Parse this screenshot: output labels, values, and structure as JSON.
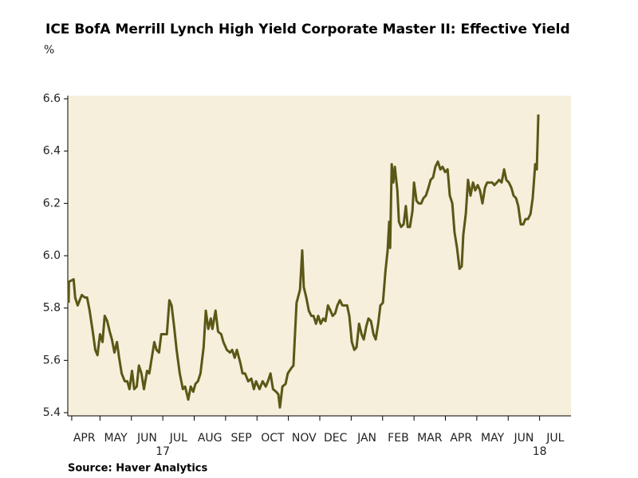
{
  "chart_data": {
    "type": "line",
    "title": "ICE BofA Merrill Lynch High Yield Corporate Master II: Effective Yield",
    "ylabel": "%",
    "source": "Source: Haver Analytics",
    "color": "#5b5716",
    "background": "#f5efdc",
    "grid": false,
    "ylim": [
      5.4,
      6.6
    ],
    "yticks": [
      5.4,
      5.6,
      5.8,
      {
        "value": 6,
        "label": "6.0"
      },
      6.2,
      6.4,
      6.6
    ],
    "xlim": [
      0,
      16
    ],
    "xticks": [
      {
        "value": 0.5,
        "label": "APR"
      },
      {
        "value": 1.5,
        "label": "MAY"
      },
      {
        "value": 2.5,
        "label": "JUN"
      },
      {
        "value": 3.5,
        "label": "JUL"
      },
      {
        "value": 4.5,
        "label": "AUG"
      },
      {
        "value": 5.5,
        "label": "SEP"
      },
      {
        "value": 6.5,
        "label": "OCT"
      },
      {
        "value": 7.5,
        "label": "NOV"
      },
      {
        "value": 8.5,
        "label": "DEC"
      },
      {
        "value": 9.5,
        "label": "JAN"
      },
      {
        "value": 10.5,
        "label": "FEB"
      },
      {
        "value": 11.5,
        "label": "MAR"
      },
      {
        "value": 12.5,
        "label": "APR"
      },
      {
        "value": 13.5,
        "label": "MAY"
      },
      {
        "value": 14.5,
        "label": "JUN"
      },
      {
        "value": 15.5,
        "label": "JUL"
      }
    ],
    "xminorticks": [
      0.1,
      1,
      2,
      3,
      4,
      5,
      6,
      7,
      8,
      9,
      10,
      11,
      12,
      13,
      14,
      15
    ],
    "year_ticks": [
      {
        "value": 3,
        "label": "17"
      },
      {
        "value": 15,
        "label": "18"
      }
    ],
    "x": [
      0,
      0.01,
      0.16,
      0.21,
      0.29,
      0.42,
      0.52,
      0.59,
      0.67,
      0.77,
      0.85,
      0.92,
      1.0,
      1.08,
      1.15,
      1.23,
      1.31,
      1.38,
      1.46,
      1.54,
      1.61,
      1.69,
      1.79,
      1.87,
      1.94,
      2.02,
      2.09,
      2.17,
      2.24,
      2.32,
      2.4,
      2.5,
      2.57,
      2.65,
      2.73,
      2.8,
      2.88,
      2.95,
      3.03,
      3.13,
      3.21,
      3.28,
      3.36,
      3.44,
      3.54,
      3.64,
      3.71,
      3.81,
      3.89,
      3.97,
      4.04,
      4.12,
      4.2,
      4.3,
      4.37,
      4.45,
      4.53,
      4.58,
      4.68,
      4.76,
      4.86,
      4.93,
      5.04,
      5.14,
      5.21,
      5.29,
      5.36,
      5.47,
      5.54,
      5.62,
      5.72,
      5.82,
      5.9,
      5.97,
      6.08,
      6.18,
      6.28,
      6.35,
      6.43,
      6.51,
      6.61,
      6.68,
      6.73,
      6.81,
      6.91,
      6.98,
      7.09,
      7.16,
      7.26,
      7.37,
      7.44,
      7.49,
      7.57,
      7.65,
      7.73,
      7.8,
      7.88,
      7.95,
      8.03,
      8.11,
      8.18,
      8.26,
      8.34,
      8.41,
      8.49,
      8.56,
      8.64,
      8.72,
      8.79,
      8.87,
      8.94,
      9.02,
      9.1,
      9.17,
      9.25,
      9.33,
      9.4,
      9.48,
      9.55,
      9.63,
      9.71,
      9.78,
      9.86,
      9.93,
      10.01,
      10.09,
      10.16,
      10.21,
      10.24,
      10.29,
      10.34,
      10.39,
      10.47,
      10.52,
      10.59,
      10.67,
      10.74,
      10.8,
      10.87,
      10.95,
      11.0,
      11.08,
      11.15,
      11.23,
      11.3,
      11.38,
      11.46,
      11.53,
      11.61,
      11.68,
      11.76,
      11.84,
      11.91,
      11.99,
      12.07,
      12.14,
      12.22,
      12.29,
      12.37,
      12.45,
      12.52,
      12.57,
      12.65,
      12.72,
      12.8,
      12.88,
      12.95,
      13.03,
      13.1,
      13.18,
      13.26,
      13.33,
      13.41,
      13.49,
      13.56,
      13.64,
      13.71,
      13.79,
      13.87,
      13.94,
      14.02,
      14.1,
      14.17,
      14.25,
      14.32,
      14.4,
      14.48,
      14.55,
      14.63,
      14.71,
      14.78,
      14.86,
      14.91,
      14.96
    ],
    "values": [
      5.82,
      5.9,
      5.91,
      5.84,
      5.81,
      5.85,
      5.84,
      5.84,
      5.79,
      5.71,
      5.64,
      5.62,
      5.7,
      5.67,
      5.77,
      5.75,
      5.71,
      5.68,
      5.63,
      5.67,
      5.61,
      5.55,
      5.52,
      5.52,
      5.49,
      5.56,
      5.49,
      5.5,
      5.58,
      5.55,
      5.49,
      5.56,
      5.55,
      5.61,
      5.67,
      5.64,
      5.63,
      5.7,
      5.7,
      5.7,
      5.83,
      5.81,
      5.73,
      5.64,
      5.55,
      5.49,
      5.5,
      5.45,
      5.5,
      5.48,
      5.51,
      5.52,
      5.55,
      5.65,
      5.79,
      5.72,
      5.76,
      5.72,
      5.79,
      5.71,
      5.7,
      5.67,
      5.64,
      5.63,
      5.64,
      5.61,
      5.64,
      5.59,
      5.55,
      5.55,
      5.52,
      5.53,
      5.49,
      5.52,
      5.49,
      5.52,
      5.5,
      5.52,
      5.55,
      5.49,
      5.48,
      5.47,
      5.42,
      5.5,
      5.51,
      5.55,
      5.57,
      5.58,
      5.82,
      5.87,
      6.02,
      5.88,
      5.84,
      5.79,
      5.77,
      5.77,
      5.74,
      5.77,
      5.74,
      5.76,
      5.75,
      5.81,
      5.79,
      5.77,
      5.78,
      5.81,
      5.83,
      5.81,
      5.81,
      5.81,
      5.77,
      5.67,
      5.64,
      5.65,
      5.74,
      5.7,
      5.68,
      5.73,
      5.76,
      5.75,
      5.7,
      5.68,
      5.74,
      5.81,
      5.82,
      5.94,
      6.02,
      6.13,
      6.03,
      6.35,
      6.28,
      6.34,
      6.25,
      6.13,
      6.11,
      6.12,
      6.19,
      6.11,
      6.11,
      6.17,
      6.28,
      6.21,
      6.2,
      6.2,
      6.22,
      6.23,
      6.26,
      6.29,
      6.3,
      6.34,
      6.36,
      6.33,
      6.34,
      6.32,
      6.33,
      6.23,
      6.2,
      6.09,
      6.03,
      5.95,
      5.96,
      6.08,
      6.16,
      6.29,
      6.23,
      6.28,
      6.25,
      6.27,
      6.25,
      6.2,
      6.26,
      6.28,
      6.28,
      6.28,
      6.27,
      6.28,
      6.29,
      6.28,
      6.33,
      6.29,
      6.28,
      6.26,
      6.23,
      6.22,
      6.19,
      6.12,
      6.12,
      6.14,
      6.14,
      6.16,
      6.22,
      6.35,
      6.33,
      6.54
    ]
  }
}
